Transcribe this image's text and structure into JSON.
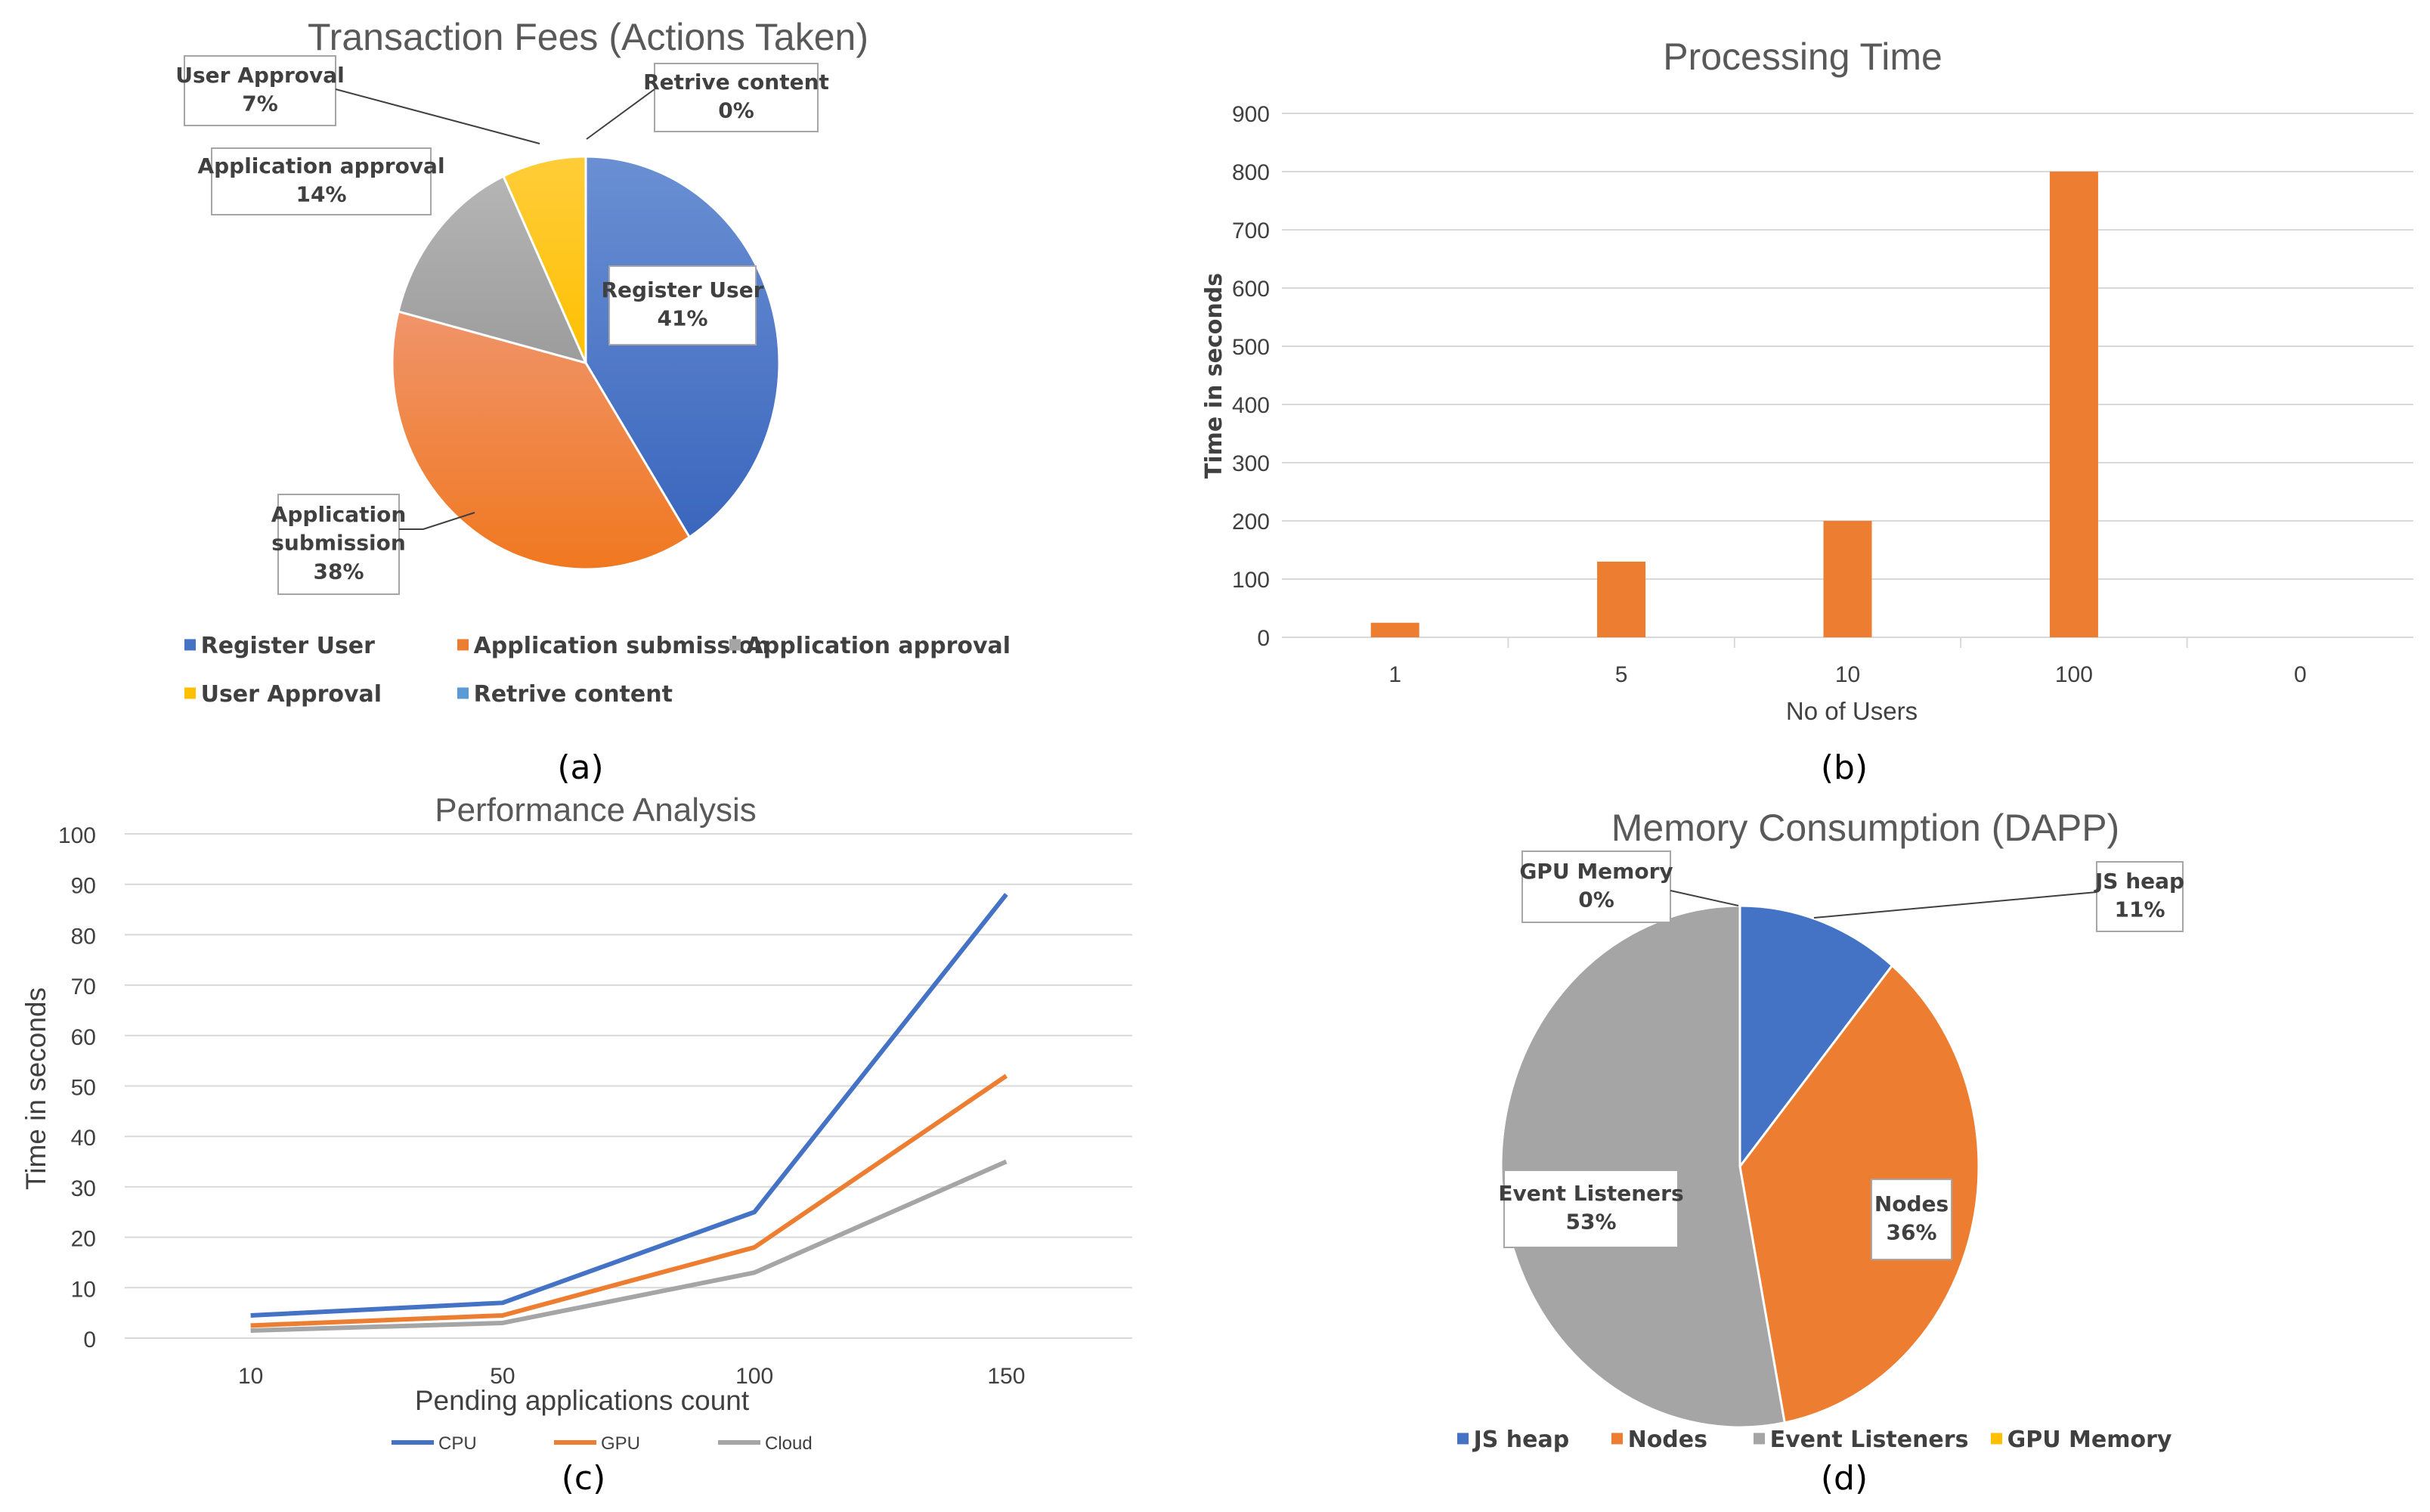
{
  "colors": {
    "blue": "#4472c4",
    "orange": "#ed7d31",
    "gray": "#a5a5a5",
    "yellow": "#ffc000",
    "lightblue": "#5b9bd5"
  },
  "captions": {
    "a": "(a)",
    "b": "(b)",
    "c": "(c)",
    "d": "(d)"
  },
  "chart_data": [
    {
      "type": "pie",
      "title": "Transaction Fees (Actions Taken)",
      "categories": [
        "Register User",
        "Application submission",
        "Application approval",
        "User Approval",
        "Retrive content"
      ],
      "values": [
        41,
        38,
        14,
        7,
        0
      ],
      "labels": [
        {
          "name_lines": [
            "Register User"
          ],
          "pct": "41%"
        },
        {
          "name_lines": [
            "Application",
            "submission"
          ],
          "pct": "38%"
        },
        {
          "name_lines": [
            "Application approval"
          ],
          "pct": "14%"
        },
        {
          "name_lines": [
            "User Approval"
          ],
          "pct": "7%"
        },
        {
          "name_lines": [
            "Retrive content"
          ],
          "pct": "0%"
        }
      ],
      "legend": [
        "Register User",
        "Application submission",
        "Application approval",
        "User Approval",
        "Retrive content"
      ],
      "legend_position": "bottom"
    },
    {
      "type": "bar",
      "title": "Processing Time",
      "categories": [
        "1",
        "5",
        "10",
        "100",
        "0"
      ],
      "values": [
        25,
        130,
        200,
        800,
        0
      ],
      "xlabel": "No of Users",
      "ylabel": "Time in seconds",
      "ylim": [
        0,
        900
      ],
      "yticks": [
        "0",
        "100",
        "200",
        "300",
        "400",
        "500",
        "600",
        "700",
        "800",
        "900"
      ],
      "grid": true
    },
    {
      "type": "line",
      "title": "Performance Analysis",
      "categories": [
        "10",
        "50",
        "100",
        "150"
      ],
      "series": [
        {
          "name": "CPU",
          "values": [
            4.5,
            7,
            25,
            88
          ]
        },
        {
          "name": "GPU",
          "values": [
            2.5,
            4.5,
            18,
            52
          ]
        },
        {
          "name": "Cloud",
          "values": [
            1.5,
            3,
            13,
            35
          ]
        }
      ],
      "xlabel": "Pending applications count",
      "ylabel": "Time in seconds",
      "ylim": [
        0,
        100
      ],
      "yticks": [
        "0",
        "10",
        "20",
        "30",
        "40",
        "50",
        "60",
        "70",
        "80",
        "90",
        "100"
      ],
      "grid": true,
      "legend_position": "bottom"
    },
    {
      "type": "pie",
      "title": "Memory Consumption (DAPP)",
      "categories": [
        "JS heap",
        "Nodes",
        "Event Listeners",
        "GPU Memory"
      ],
      "values": [
        11,
        36,
        53,
        0
      ],
      "labels": [
        {
          "name_lines": [
            "JS heap"
          ],
          "pct": "11%"
        },
        {
          "name_lines": [
            "Nodes"
          ],
          "pct": "36%"
        },
        {
          "name_lines": [
            "Event Listeners"
          ],
          "pct": "53%"
        },
        {
          "name_lines": [
            "GPU Memory"
          ],
          "pct": "0%"
        }
      ],
      "legend": [
        "JS heap",
        "Nodes",
        "Event Listeners",
        "GPU Memory"
      ],
      "legend_position": "bottom"
    }
  ]
}
